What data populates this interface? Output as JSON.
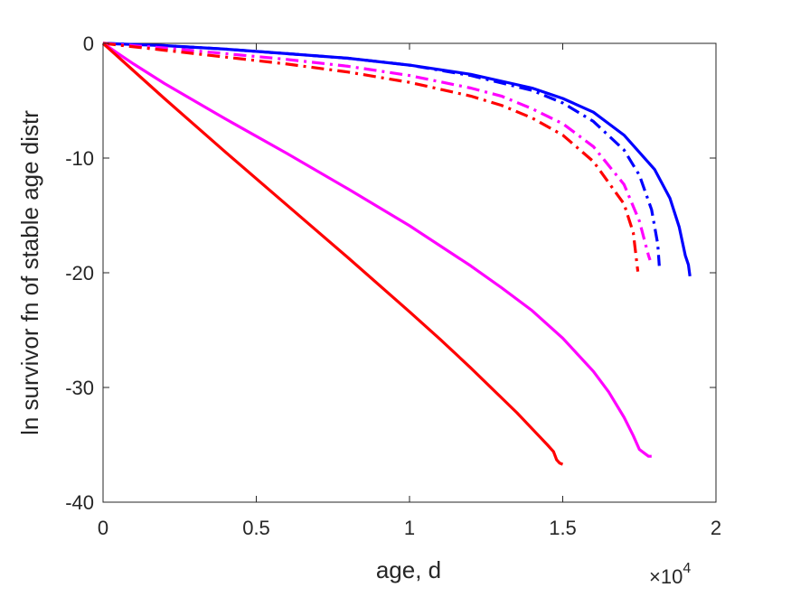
{
  "chart_data": {
    "type": "line",
    "title": "",
    "xlabel": "age, d",
    "ylabel": "ln survivor fn of stable age distr",
    "x_exponent_label": {
      "base": "×10",
      "power": "4"
    },
    "xlim": [
      0,
      2
    ],
    "ylim": [
      -40,
      0
    ],
    "x_unit_scale": 10000,
    "xticks": [
      0,
      0.5,
      1,
      1.5,
      2
    ],
    "xtick_labels": [
      "0",
      "0.5",
      "1",
      "1.5",
      "2"
    ],
    "yticks": [
      0,
      -10,
      -20,
      -30,
      -40
    ],
    "ytick_labels": [
      "0",
      "-10",
      "-20",
      "-30",
      "-40"
    ],
    "grid": false,
    "legend": "none",
    "series": [
      {
        "color": "#0000ff",
        "style": "solid",
        "points": [
          [
            0,
            0
          ],
          [
            0.2,
            -0.2
          ],
          [
            0.4,
            -0.5
          ],
          [
            0.6,
            -0.9
          ],
          [
            0.8,
            -1.3
          ],
          [
            1.0,
            -1.9
          ],
          [
            1.2,
            -2.7
          ],
          [
            1.4,
            -3.9
          ],
          [
            1.5,
            -4.8
          ],
          [
            1.6,
            -6.0
          ],
          [
            1.7,
            -8.0
          ],
          [
            1.8,
            -11.0
          ],
          [
            1.85,
            -13.5
          ],
          [
            1.88,
            -16.0
          ],
          [
            1.9,
            -18.5
          ],
          [
            1.91,
            -19.3
          ],
          [
            1.915,
            -20.3
          ]
        ]
      },
      {
        "color": "#0000ff",
        "style": "dashdot",
        "points": [
          [
            0,
            0
          ],
          [
            0.2,
            -0.2
          ],
          [
            0.4,
            -0.5
          ],
          [
            0.6,
            -0.9
          ],
          [
            0.8,
            -1.3
          ],
          [
            1.0,
            -1.9
          ],
          [
            1.2,
            -2.8
          ],
          [
            1.4,
            -4.1
          ],
          [
            1.5,
            -5.2
          ],
          [
            1.6,
            -6.8
          ],
          [
            1.7,
            -9.3
          ],
          [
            1.75,
            -11.5
          ],
          [
            1.79,
            -14.5
          ],
          [
            1.81,
            -17.5
          ],
          [
            1.815,
            -19.4
          ]
        ]
      },
      {
        "color": "#ff00ff",
        "style": "dashdot",
        "points": [
          [
            0,
            0
          ],
          [
            0.2,
            -0.4
          ],
          [
            0.4,
            -0.9
          ],
          [
            0.6,
            -1.4
          ],
          [
            0.8,
            -2.0
          ],
          [
            1.0,
            -2.8
          ],
          [
            1.2,
            -3.9
          ],
          [
            1.3,
            -4.6
          ],
          [
            1.4,
            -5.7
          ],
          [
            1.5,
            -7.0
          ],
          [
            1.6,
            -9.0
          ],
          [
            1.7,
            -12.3
          ],
          [
            1.75,
            -15.5
          ],
          [
            1.78,
            -18.5
          ],
          [
            1.785,
            -18.9
          ]
        ]
      },
      {
        "color": "#ff0000",
        "style": "dashdot",
        "points": [
          [
            0,
            0
          ],
          [
            0.2,
            -0.6
          ],
          [
            0.4,
            -1.2
          ],
          [
            0.6,
            -1.8
          ],
          [
            0.8,
            -2.5
          ],
          [
            1.0,
            -3.4
          ],
          [
            1.2,
            -4.6
          ],
          [
            1.3,
            -5.4
          ],
          [
            1.4,
            -6.5
          ],
          [
            1.5,
            -8.0
          ],
          [
            1.6,
            -10.3
          ],
          [
            1.7,
            -14.0
          ],
          [
            1.73,
            -16.5
          ],
          [
            1.745,
            -19.9
          ]
        ]
      },
      {
        "color": "#ff00ff",
        "style": "solid",
        "points": [
          [
            0,
            0
          ],
          [
            0.1,
            -1.8
          ],
          [
            0.2,
            -3.5
          ],
          [
            0.4,
            -6.6
          ],
          [
            0.6,
            -9.6
          ],
          [
            0.8,
            -12.7
          ],
          [
            1.0,
            -15.9
          ],
          [
            1.2,
            -19.4
          ],
          [
            1.3,
            -21.3
          ],
          [
            1.4,
            -23.3
          ],
          [
            1.5,
            -25.7
          ],
          [
            1.6,
            -28.6
          ],
          [
            1.65,
            -30.4
          ],
          [
            1.7,
            -32.6
          ],
          [
            1.73,
            -34.2
          ],
          [
            1.75,
            -35.4
          ],
          [
            1.77,
            -35.8
          ],
          [
            1.78,
            -36.0
          ],
          [
            1.79,
            -36.0
          ]
        ]
      },
      {
        "color": "#ff0000",
        "style": "solid",
        "points": [
          [
            0,
            0
          ],
          [
            0.1,
            -2.4
          ],
          [
            0.2,
            -4.8
          ],
          [
            0.4,
            -9.5
          ],
          [
            0.6,
            -14.1
          ],
          [
            0.8,
            -18.7
          ],
          [
            1.0,
            -23.4
          ],
          [
            1.1,
            -25.8
          ],
          [
            1.2,
            -28.3
          ],
          [
            1.3,
            -30.9
          ],
          [
            1.35,
            -32.2
          ],
          [
            1.4,
            -33.6
          ],
          [
            1.45,
            -35.0
          ],
          [
            1.47,
            -35.6
          ],
          [
            1.48,
            -36.3
          ],
          [
            1.49,
            -36.6
          ],
          [
            1.5,
            -36.7
          ]
        ]
      }
    ]
  }
}
